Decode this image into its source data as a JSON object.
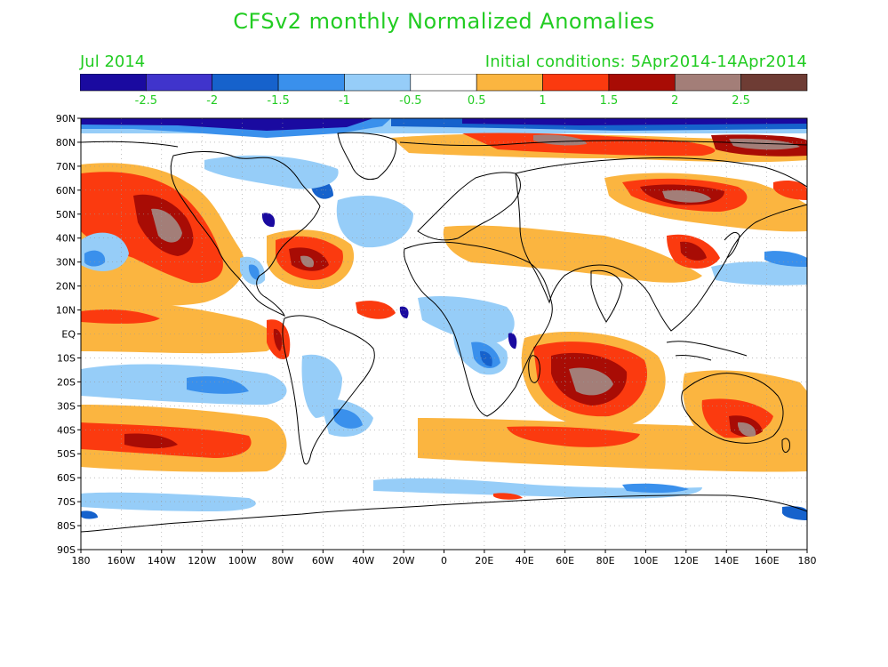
{
  "header": {
    "title": "CFSv2 monthly Normalized Anomalies",
    "month": "Jul 2014",
    "initial_conditions": "Initial conditions: 5Apr2014-14Apr2014"
  },
  "colorbar": {
    "colors": [
      "#1a0aa0",
      "#4034cc",
      "#1662cc",
      "#3a90ec",
      "#96cdf8",
      "#ffffff",
      "#fbb540",
      "#fb3a0f",
      "#a80c05",
      "#a37e78",
      "#6e3c34"
    ],
    "labels": [
      "-2.5",
      "-2",
      "-1.5",
      "-1",
      "-0.5",
      "0.5",
      "1",
      "1.5",
      "2",
      "2.5"
    ]
  },
  "axes": {
    "lat_labels": [
      "90N",
      "80N",
      "70N",
      "60N",
      "50N",
      "40N",
      "30N",
      "20N",
      "10N",
      "EQ",
      "10S",
      "20S",
      "30S",
      "40S",
      "50S",
      "60S",
      "70S",
      "80S",
      "90S"
    ],
    "lon_labels": [
      "180",
      "160W",
      "140W",
      "120W",
      "100W",
      "80W",
      "60W",
      "40W",
      "20W",
      "0",
      "20E",
      "40E",
      "60E",
      "80E",
      "100E",
      "120E",
      "140E",
      "160E",
      "180"
    ]
  }
}
